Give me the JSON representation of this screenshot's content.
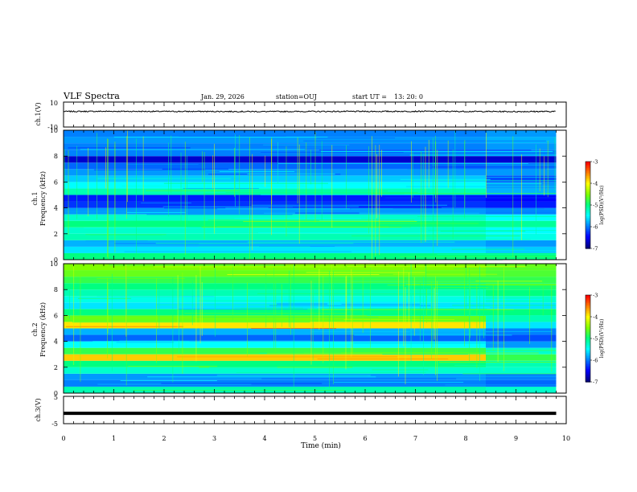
{
  "header": {
    "title": "VLF Spectra",
    "date": "Jan. 29, 2026",
    "station": "station=OUJ",
    "start_label": "start  UT  =",
    "start_time": "13: 20: 0"
  },
  "colors": {
    "colormap": [
      "#000080",
      "#0000ff",
      "#0080ff",
      "#00ffff",
      "#00ff80",
      "#80ff00",
      "#ffff00",
      "#ff8000",
      "#ff0000",
      "#ffffff"
    ],
    "trace": "#000000"
  },
  "chart_data": [
    {
      "id": "ch1_voltage",
      "type": "line",
      "ylabel": "ch.1(V)",
      "ylim": [
        -10,
        10
      ],
      "yticks": [
        "10",
        "-10"
      ],
      "x": [
        0,
        1,
        2,
        3,
        4,
        5,
        6,
        7,
        8,
        9,
        9.8
      ],
      "y": [
        2.5,
        2.6,
        2.5,
        2.5,
        2.4,
        2.5,
        2.5,
        2.6,
        2.5,
        2.4,
        2.5
      ]
    },
    {
      "id": "ch1_spectrogram",
      "type": "heatmap",
      "ylabel": "ch.1\nFrequency (kHz)",
      "ylim": [
        0,
        10
      ],
      "yticks": [
        "0",
        "2",
        "4",
        "6",
        "8",
        "10"
      ],
      "xlim": [
        0,
        9.8
      ],
      "freq_bands_khz": [
        0,
        0.5,
        1,
        1.5,
        2,
        2.5,
        3,
        3.5,
        4,
        4.5,
        5,
        5.5,
        6,
        6.5,
        7,
        7.5,
        8,
        8.5,
        9,
        9.5
      ],
      "time_segments_min": [
        0,
        8.4
      ],
      "log_psd": [
        [
          -5.0,
          -5.6,
          -5.8,
          -5.2,
          -5.3,
          -5.0,
          -5.3,
          -5.9,
          -6.3,
          -6.4,
          -5.2,
          -5.5,
          -5.7,
          -5.9,
          -6.1,
          -6.7,
          -6.0,
          -6.0,
          -5.9,
          -6.0
        ],
        [
          -5.0,
          -5.7,
          -5.9,
          -5.4,
          -5.5,
          -5.1,
          -5.5,
          -6.0,
          -6.4,
          -6.5,
          -5.8,
          -5.9,
          -6.2,
          -5.9,
          -6.0,
          -6.7,
          -6.0,
          -5.9,
          -5.8,
          -5.9
        ]
      ],
      "colorbar": {
        "label": "log(PSD)(V²/Hz)",
        "range": [
          -7,
          -3
        ],
        "ticks": [
          "-3",
          "-4",
          "-5",
          "-6",
          "-7"
        ]
      }
    },
    {
      "id": "ch2_spectrogram",
      "type": "heatmap",
      "ylabel": "ch.2\nFrequency (kHz)",
      "ylim": [
        0,
        10
      ],
      "yticks": [
        "0",
        "2",
        "4",
        "6",
        "8",
        "10"
      ],
      "xlim": [
        0,
        9.8
      ],
      "freq_bands_khz": [
        0,
        0.5,
        1,
        1.5,
        2,
        2.5,
        3,
        3.5,
        4,
        4.5,
        5,
        5.5,
        6,
        6.5,
        7,
        7.5,
        8,
        8.5,
        9,
        9.5
      ],
      "time_segments_min": [
        0,
        8.4
      ],
      "log_psd": [
        [
          -5.2,
          -6.0,
          -5.9,
          -5.3,
          -5.0,
          -3.8,
          -4.8,
          -5.5,
          -6.1,
          -5.8,
          -3.9,
          -4.6,
          -5.0,
          -5.6,
          -5.4,
          -5.2,
          -5.0,
          -4.8,
          -4.6,
          -4.5
        ],
        [
          -5.3,
          -6.1,
          -6.0,
          -5.3,
          -5.2,
          -4.8,
          -5.3,
          -5.9,
          -6.2,
          -6.0,
          -5.6,
          -5.2,
          -5.0,
          -5.6,
          -5.3,
          -5.0,
          -4.9,
          -4.8,
          -4.7,
          -4.6
        ]
      ],
      "colorbar": {
        "label": "log(PSD)(V²/Hz)",
        "range": [
          -7,
          -3
        ],
        "ticks": [
          "-3",
          "-4",
          "-5",
          "-6",
          "-7"
        ]
      }
    },
    {
      "id": "ch3_voltage",
      "type": "line",
      "ylabel": "ch.3(V)",
      "ylim": [
        -5,
        5
      ],
      "yticks": [
        "5",
        "-5"
      ],
      "x": [
        0,
        9.8
      ],
      "y": [
        -1.2,
        -1.2
      ]
    }
  ],
  "xaxis": {
    "label": "Time (min)",
    "xlim": [
      0,
      10
    ],
    "ticks": [
      "0",
      "1",
      "2",
      "3",
      "4",
      "5",
      "6",
      "7",
      "8",
      "9",
      "10"
    ]
  }
}
